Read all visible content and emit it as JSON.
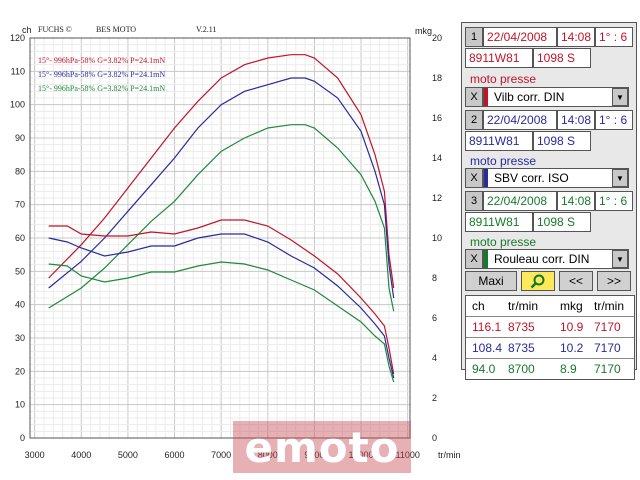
{
  "chart_data": {
    "type": "line",
    "header": {
      "left": "FUCHS ©",
      "mid": "BES MOTO",
      "ver": "V.2.11"
    },
    "y_left_label": "ch",
    "y_right_label": "mkg",
    "x_label": "tr/min",
    "x_ticks": [
      3000,
      4000,
      5000,
      6000,
      7000,
      8000,
      9000,
      10000,
      11000
    ],
    "y_left_ticks": [
      0,
      10,
      20,
      30,
      40,
      50,
      60,
      70,
      80,
      90,
      100,
      110,
      120
    ],
    "y_right_ticks": [
      0,
      2,
      4,
      6,
      8,
      10,
      12,
      14,
      16,
      18,
      20
    ],
    "xlim": [
      2900,
      11050
    ],
    "ylim_left": [
      0,
      120
    ],
    "ylim_right": [
      0,
      20
    ],
    "legend": [
      {
        "text": "15°- 996hPa-58% G=3.82% P=24.1mN",
        "color": "#c0142a"
      },
      {
        "text": "15°- 996hPa-58% G=3.82% P=24.1mN",
        "color": "#2a2a9a"
      },
      {
        "text": "15°- 996hPa-58% G=3.82% P=24.1mN",
        "color": "#1e8a3a"
      }
    ],
    "series": [
      {
        "type": "power",
        "color": "#c0142a",
        "x": [
          3300,
          4000,
          4500,
          5000,
          5500,
          6000,
          6500,
          7000,
          7500,
          8000,
          8500,
          8800,
          9000,
          9500,
          10000,
          10300,
          10500,
          10600,
          10700
        ],
        "y": [
          48,
          58,
          66,
          75,
          84,
          93,
          101,
          108,
          112,
          114,
          115,
          115,
          114,
          108,
          97,
          85,
          74,
          55,
          45
        ]
      },
      {
        "type": "power",
        "color": "#2a2a9a",
        "x": [
          3300,
          4000,
          4500,
          5000,
          5500,
          6000,
          6500,
          7000,
          7500,
          8000,
          8500,
          8800,
          9000,
          9500,
          10000,
          10300,
          10500,
          10600,
          10700
        ],
        "y": [
          45,
          53,
          60,
          68,
          76,
          84,
          93,
          100,
          104,
          106,
          108,
          108,
          107,
          102,
          92,
          80,
          70,
          52,
          42
        ]
      },
      {
        "type": "power",
        "color": "#1e8a3a",
        "x": [
          3300,
          4000,
          4500,
          5000,
          5500,
          6000,
          6500,
          7000,
          7500,
          8000,
          8500,
          8800,
          9000,
          9500,
          10000,
          10300,
          10500,
          10600,
          10700
        ],
        "y": [
          39,
          45,
          51,
          58,
          65,
          71,
          79,
          86,
          90,
          93,
          94,
          94,
          93,
          87,
          79,
          71,
          63,
          45,
          38
        ]
      },
      {
        "type": "torque",
        "color": "#c0142a",
        "x": [
          3300,
          3700,
          4000,
          4500,
          5000,
          5500,
          6000,
          6500,
          7000,
          7500,
          8000,
          8500,
          9000,
          9500,
          10000,
          10300,
          10500,
          10600,
          10700
        ],
        "y": [
          10.6,
          10.6,
          10.2,
          10.1,
          10.1,
          10.3,
          10.2,
          10.5,
          10.9,
          10.9,
          10.6,
          9.9,
          9.1,
          8.2,
          7.0,
          6.2,
          5.6,
          4.5,
          3.2
        ]
      },
      {
        "type": "torque",
        "color": "#2a2a9a",
        "x": [
          3300,
          3700,
          4000,
          4500,
          5000,
          5500,
          6000,
          6500,
          7000,
          7500,
          8000,
          8500,
          9000,
          9500,
          10000,
          10300,
          10500,
          10600,
          10700
        ],
        "y": [
          10.0,
          9.8,
          9.5,
          9.1,
          9.3,
          9.6,
          9.6,
          10.0,
          10.2,
          10.2,
          9.8,
          9.1,
          8.5,
          7.6,
          6.5,
          5.7,
          5.1,
          4.0,
          3.0
        ]
      },
      {
        "type": "torque",
        "color": "#1e8a3a",
        "x": [
          3300,
          3700,
          4000,
          4500,
          5000,
          5500,
          6000,
          6500,
          7000,
          7500,
          8000,
          8500,
          9000,
          9500,
          10000,
          10300,
          10500,
          10600,
          10700
        ],
        "y": [
          8.7,
          8.6,
          8.1,
          7.8,
          8.0,
          8.3,
          8.3,
          8.6,
          8.8,
          8.7,
          8.4,
          7.9,
          7.4,
          6.6,
          5.8,
          5.1,
          4.7,
          3.6,
          2.8
        ]
      }
    ]
  },
  "panel": {
    "runs": [
      {
        "num": "1",
        "date": "22/04/2008",
        "time": "14:08",
        "ratio": "1° : 6",
        "code": "8911W81",
        "cc": "1098 S",
        "label": "moto presse",
        "close": "X",
        "norm": "Vilb corr. DIN",
        "color": "#c0142a",
        "cls": "red"
      },
      {
        "num": "2",
        "date": "22/04/2008",
        "time": "14:08",
        "ratio": "1° : 6",
        "code": "8911W81",
        "cc": "1098 S",
        "label": "moto presse",
        "close": "X",
        "norm": "SBV corr. ISO",
        "color": "#2a2a9a",
        "cls": "blue"
      },
      {
        "num": "3",
        "date": "22/04/2008",
        "time": "14:08",
        "ratio": "1° : 6",
        "code": "8911W81",
        "cc": "1098 S",
        "label": "moto presse",
        "close": "X",
        "norm": "Rouleau corr. DIN",
        "color": "#167a2a",
        "cls": "green"
      }
    ],
    "buttons": {
      "maxi": "Maxi",
      "prev": "<<",
      "next": ">>"
    },
    "table": {
      "header": {
        "ch": "ch",
        "trmin1": "tr/min",
        "mkg": "mkg",
        "trmin2": "tr/min"
      },
      "rows": [
        {
          "ch": "116.1",
          "rpm1": "8735",
          "mkg": "10.9",
          "rpm2": "7170"
        },
        {
          "ch": "108.4",
          "rpm1": "8735",
          "mkg": "10.2",
          "rpm2": "7170"
        },
        {
          "ch": "94.0",
          "rpm1": "8700",
          "mkg": "8.9",
          "rpm2": "7170"
        }
      ]
    }
  },
  "watermark": "emoto"
}
